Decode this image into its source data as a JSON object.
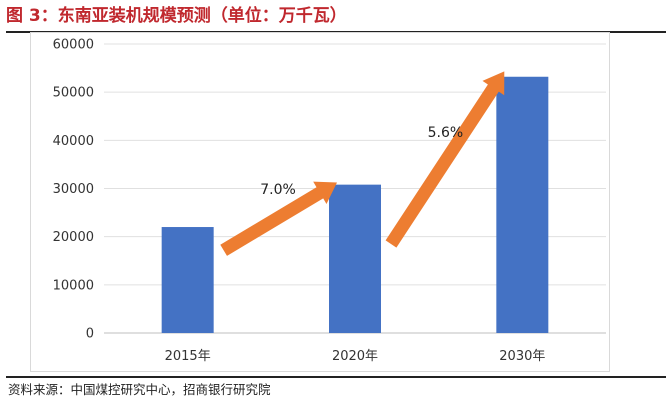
{
  "figure": {
    "title": "图 3：东南亚装机规模预测（单位：万千瓦）",
    "source": "资料来源：中国煤控研究中心，招商银行研究院"
  },
  "chart_data": {
    "type": "bar",
    "categories": [
      "2015年",
      "2020年",
      "2030年"
    ],
    "values": [
      22000,
      30800,
      53200
    ],
    "ylim": [
      0,
      60000
    ],
    "yticks": [
      0,
      10000,
      20000,
      30000,
      40000,
      50000,
      60000
    ],
    "xlabel": "",
    "ylabel": "",
    "grid": true,
    "bar_color": "#4472c4",
    "annotations": [
      {
        "label": "7.0%",
        "from_category": "2015年",
        "to_category": "2020年",
        "arrow_color": "#ed7d31"
      },
      {
        "label": "5.6%",
        "from_category": "2020年",
        "to_category": "2030年",
        "arrow_color": "#ed7d31"
      }
    ]
  }
}
